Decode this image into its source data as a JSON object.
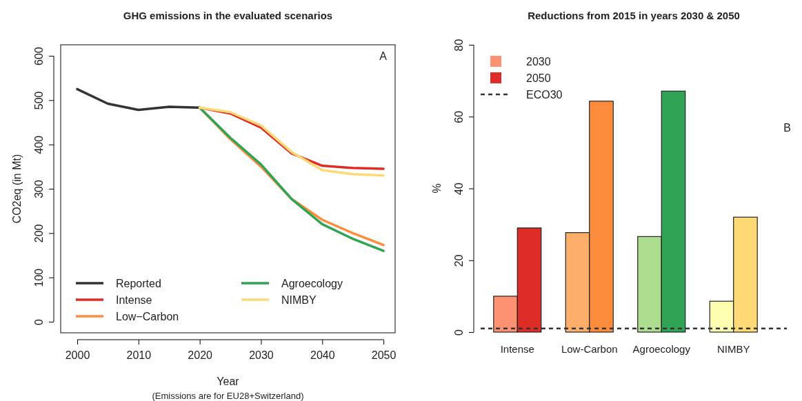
{
  "chart_data": [
    {
      "type": "line",
      "title": "GHG emissions in the evaluated scenarios",
      "xlabel": "Year",
      "ylabel": "CO2eq (in Mt)",
      "x": [
        2000,
        2005,
        2010,
        2015,
        2020,
        2025,
        2030,
        2035,
        2040,
        2045,
        2050
      ],
      "xlim": [
        1997.3,
        2051.9
      ],
      "xticks": [
        2000,
        2010,
        2020,
        2030,
        2040,
        2050
      ],
      "ylim": [
        -25,
        625
      ],
      "yticks": [
        0,
        100,
        200,
        300,
        400,
        500,
        600
      ],
      "legend": "bottom left",
      "line_style": "solid",
      "marker": "none",
      "annotations": [
        "A",
        "(Emissions are for EU28+Switzerland)"
      ],
      "series": [
        {
          "name": "Reported",
          "color": "#333333",
          "values": [
            525,
            492,
            478,
            485,
            483,
            null,
            null,
            null,
            null,
            null,
            null
          ]
        },
        {
          "name": "Intense",
          "color": "#de2d26",
          "values": [
            null,
            null,
            null,
            null,
            483,
            470,
            438,
            380,
            352,
            347,
            345
          ]
        },
        {
          "name": "Low−Carbon",
          "color": "#fd8d3c",
          "values": [
            null,
            null,
            null,
            null,
            483,
            412,
            350,
            277,
            230,
            200,
            173
          ]
        },
        {
          "name": "Agroecology",
          "color": "#31a354",
          "values": [
            null,
            null,
            null,
            null,
            483,
            415,
            355,
            277,
            220,
            187,
            160
          ]
        },
        {
          "name": "NIMBY",
          "color": "#fed976",
          "values": [
            null,
            null,
            null,
            null,
            483,
            473,
            443,
            383,
            342,
            333,
            330
          ]
        }
      ]
    },
    {
      "type": "bar",
      "title": "Reductions from 2015 in years 2030 & 2050",
      "ylabel": "%",
      "categories": [
        "Intense",
        "Low-Carbon",
        "Agroecology",
        "NIMBY"
      ],
      "ylim": [
        0,
        80
      ],
      "yticks": [
        0,
        20,
        40,
        60,
        80
      ],
      "legend": "top left",
      "annotations": [
        "B"
      ],
      "ref_lines": [
        {
          "axis": "y",
          "value": 1,
          "label": "ECO30",
          "color": "#333333",
          "line_style": "dashed"
        }
      ],
      "series": [
        {
          "name": "2030",
          "color": "#fc9272",
          "colors": [
            "#fc9272",
            "#fdae6b",
            "#addd8e",
            "#ffffb2"
          ],
          "values": [
            10,
            27.7,
            26.6,
            8.6
          ]
        },
        {
          "name": "2050",
          "color": "#de2d26",
          "colors": [
            "#de2d26",
            "#fd8d3c",
            "#31a354",
            "#fed976"
          ],
          "values": [
            29,
            64.3,
            67.1,
            32
          ]
        }
      ]
    }
  ]
}
